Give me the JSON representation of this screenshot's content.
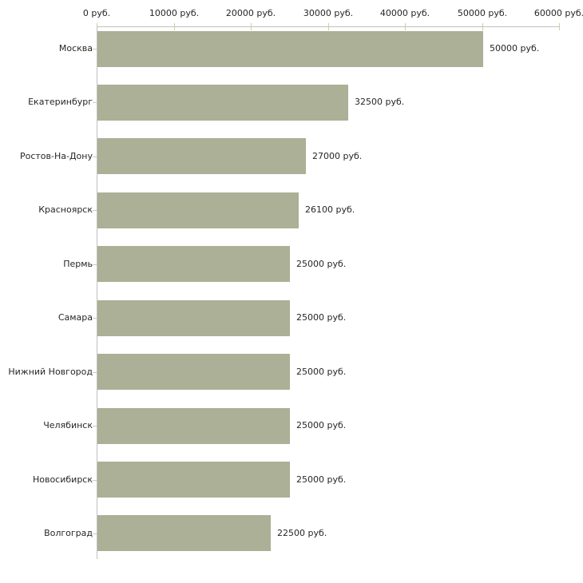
{
  "chart_data": {
    "type": "bar",
    "orientation": "horizontal",
    "title": "",
    "xlabel": "",
    "ylabel": "",
    "unit": "руб.",
    "categories": [
      "Москва",
      "Екатеринбург",
      "Ростов-На-Дону",
      "Красноярск",
      "Пермь",
      "Самара",
      "Нижний Новгород",
      "Челябинск",
      "Новосибирск",
      "Волгоград"
    ],
    "values": [
      50000,
      32500,
      27000,
      26100,
      25000,
      25000,
      25000,
      25000,
      25000,
      22500
    ],
    "value_labels": [
      "50000 руб.",
      "32500 руб.",
      "27000 руб.",
      "26100 руб.",
      "25000 руб.",
      "25000 руб.",
      "25000 руб.",
      "25000 руб.",
      "25000 руб.",
      "22500 руб."
    ],
    "x_axis": {
      "position": "top",
      "range": [
        0,
        60000
      ],
      "ticks": [
        0,
        10000,
        20000,
        30000,
        40000,
        50000,
        60000
      ],
      "tick_labels": [
        "0 руб.",
        "10000 руб.",
        "20000 руб.",
        "30000 руб.",
        "40000 руб.",
        "50000 руб.",
        "60000 руб."
      ]
    },
    "grid": false,
    "legend": false,
    "colors": {
      "bar": "#abb096",
      "axis_line": "#c0c0c0",
      "tick_mark": "#cfcfa3",
      "text": "#262626",
      "background": "#ffffff"
    }
  }
}
